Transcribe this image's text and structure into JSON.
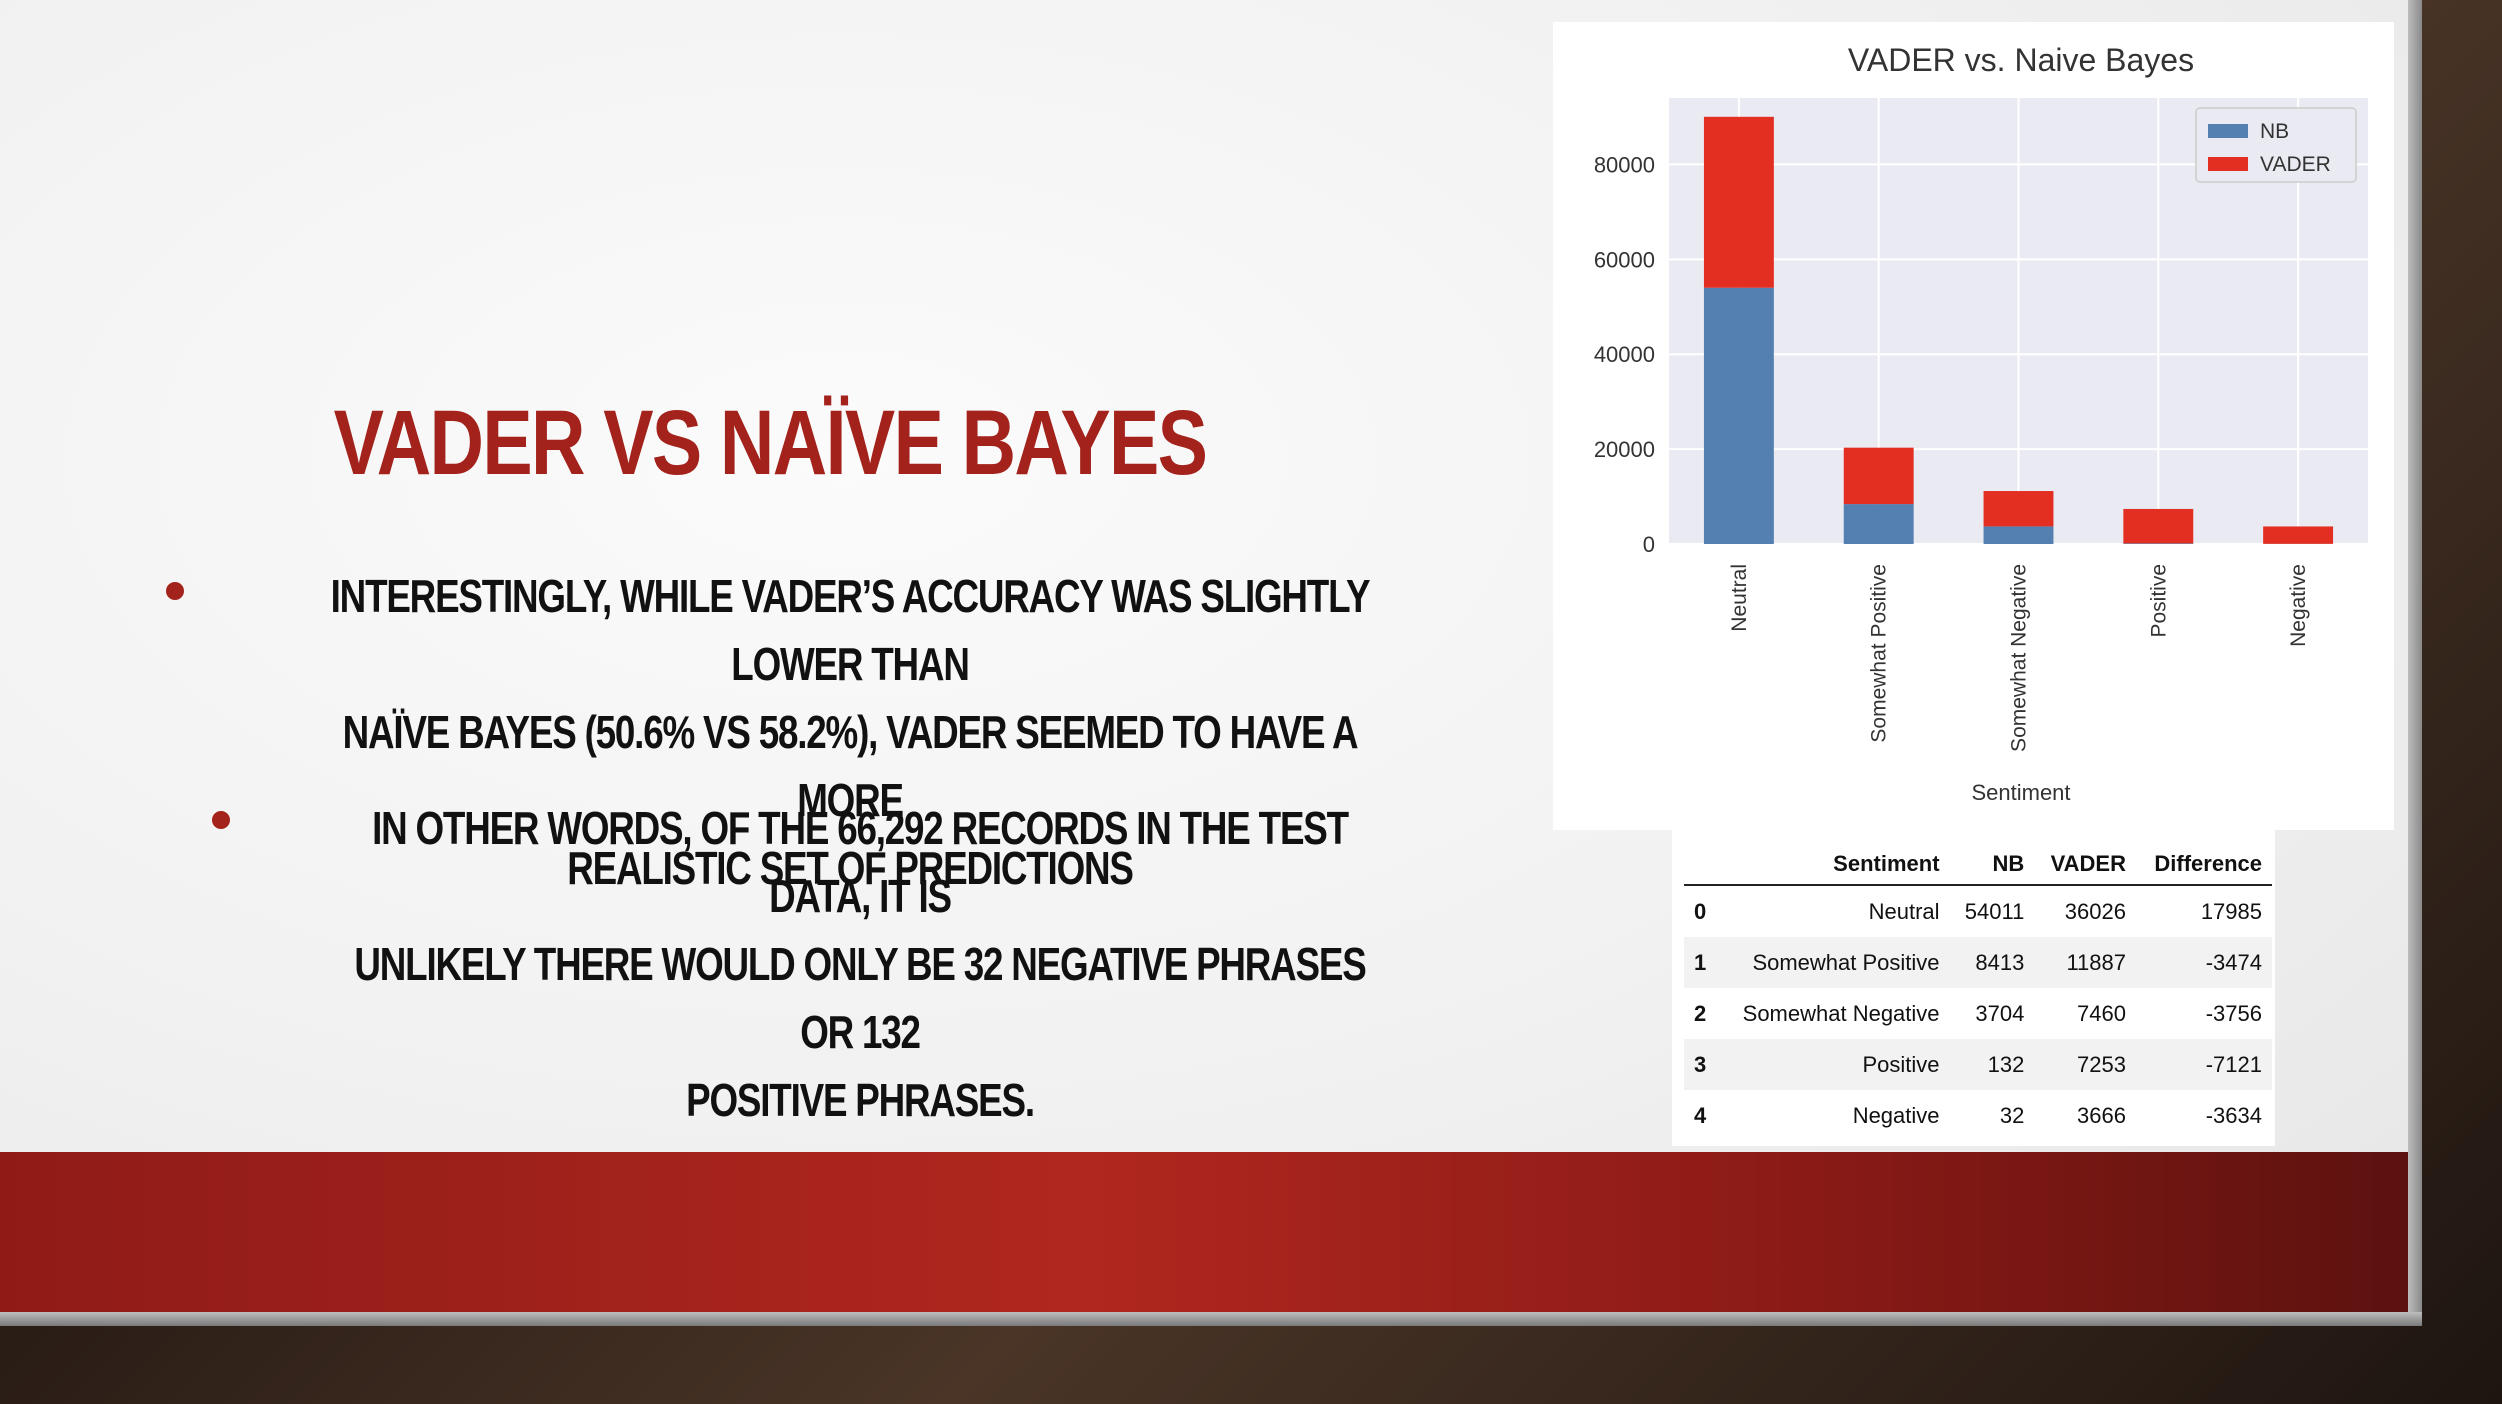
{
  "slide": {
    "title": "VADER VS NAÏVE BAYES",
    "bullets": [
      {
        "lines": [
          "INTERESTINGLY, WHILE VADER’S ACCURACY WAS SLIGHTLY LOWER THAN",
          "NAÏVE BAYES (50.6% VS 58.2%), VADER SEEMED TO HAVE A MORE",
          "REALISTIC SET OF PREDICTIONS"
        ]
      },
      {
        "lines": [
          "IN OTHER WORDS, OF THE 66,292 RECORDS IN THE TEST DATA, IT IS",
          "UNLIKELY THERE WOULD ONLY BE 32 NEGATIVE PHRASES OR 132",
          "POSITIVE PHRASES."
        ]
      }
    ],
    "colors": {
      "accent": "#a3221b",
      "band": "#b0271f",
      "text": "#111111"
    }
  },
  "chart_data": {
    "type": "bar",
    "stacked": true,
    "title": "VADER vs. Naive Bayes",
    "xlabel": "Sentiment",
    "ylabel": "",
    "categories": [
      "Neutral",
      "Somewhat Positive",
      "Somewhat Negative",
      "Positive",
      "Negative"
    ],
    "series": [
      {
        "name": "NB",
        "color": "#5480b1",
        "values": [
          54011,
          8413,
          3704,
          132,
          32
        ]
      },
      {
        "name": "VADER",
        "color": "#e32f22",
        "values": [
          36026,
          11887,
          7460,
          7253,
          3666
        ]
      }
    ],
    "ylim": [
      0,
      94000
    ],
    "yticks": [
      0,
      20000,
      40000,
      60000,
      80000
    ],
    "grid": true,
    "legend": "top-right",
    "background": "#eaeaf2"
  },
  "table": {
    "columns": [
      "",
      "Sentiment",
      "NB",
      "VADER",
      "Difference"
    ],
    "rows": [
      [
        "0",
        "Neutral",
        "54011",
        "36026",
        "17985"
      ],
      [
        "1",
        "Somewhat Positive",
        "8413",
        "11887",
        "-3474"
      ],
      [
        "2",
        "Somewhat Negative",
        "3704",
        "7460",
        "-3756"
      ],
      [
        "3",
        "Positive",
        "132",
        "7253",
        "-7121"
      ],
      [
        "4",
        "Negative",
        "32",
        "3666",
        "-3634"
      ]
    ]
  }
}
